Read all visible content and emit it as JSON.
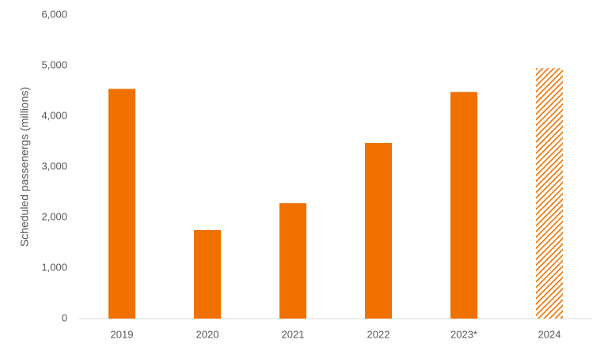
{
  "chart_data": {
    "type": "bar",
    "y_label": "Scheduled passenergs (millions)",
    "categories": [
      "2019",
      "2020",
      "2021",
      "2022",
      "2023*",
      "2024"
    ],
    "values": [
      4540,
      1750,
      2280,
      3470,
      4480,
      4950
    ],
    "patterns": [
      "solid",
      "solid",
      "solid",
      "solid",
      "solid",
      "hatch"
    ],
    "color": "#f07000",
    "ylim": [
      0,
      6000
    ],
    "yticks": [
      0,
      {
        "value": 1000,
        "label": "1,000"
      },
      {
        "value": 2000,
        "label": "2,000"
      },
      {
        "value": 3000,
        "label": "3,000"
      },
      {
        "value": 4000,
        "label": "4,000"
      },
      {
        "value": 5000,
        "label": "5,000"
      },
      {
        "value": 6000,
        "label": "6,000"
      }
    ],
    "grid": false
  }
}
